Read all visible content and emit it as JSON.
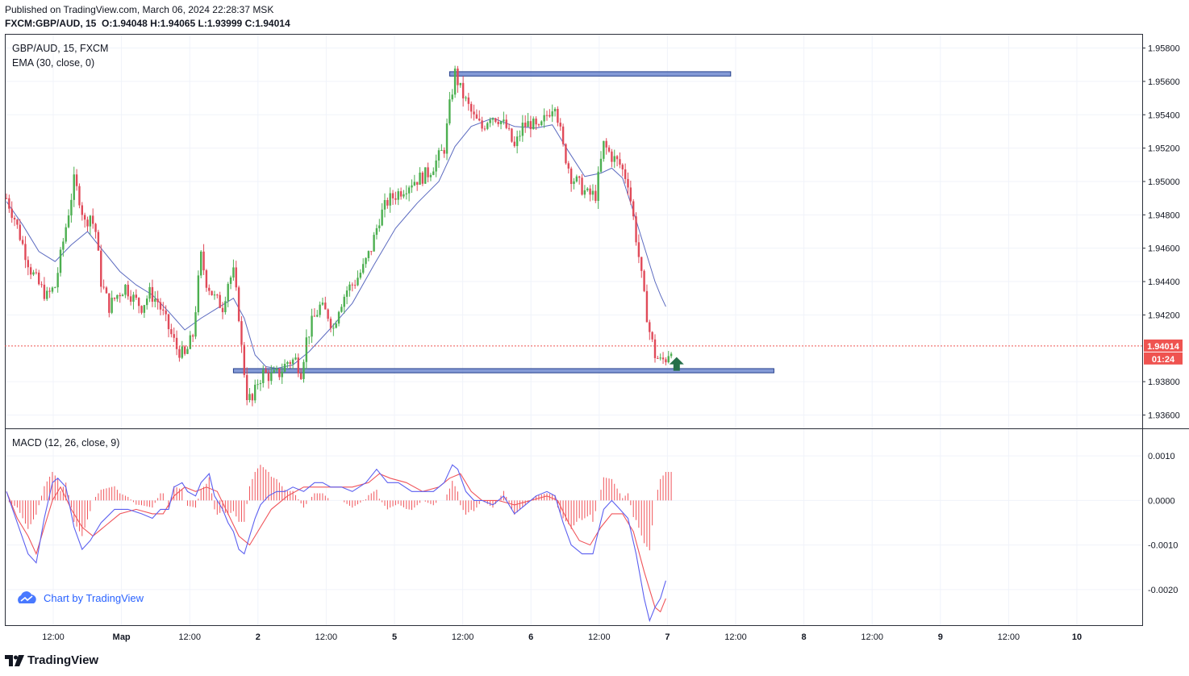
{
  "header": {
    "published": "Published on TradingView.com, March 06, 2024 22:28:37 MSK",
    "symbol": "FXCM:GBP/AUD, 15",
    "o_label": "O:",
    "o": "1.94048",
    "h_label": "H:",
    "h": "1.94065",
    "l_label": "L:",
    "l": "1.93999",
    "c_label": "C:",
    "c": "1.94014"
  },
  "legend": {
    "symbol_line": "GBP/AUD, 15, FXCM",
    "ema_line": "EMA (30, close, 0)",
    "macd_line": "MACD (12, 26, close, 9)"
  },
  "price_badge": {
    "price": "1.94014",
    "countdown": "01:24"
  },
  "watermark": "Chart by TradingView",
  "brand": "TradingView",
  "colors": {
    "up": "#26a69a",
    "down": "#ef5350",
    "candle_up": "#4caf50",
    "candle_down": "#e04a59",
    "ema": "#5c6bc0",
    "macd": "#5b5ff0",
    "signal": "#f0545a",
    "zone_fill": "#5c7ac9",
    "zone_border": "#233e8b",
    "arrow": "#26704a",
    "badge": "#ef5350",
    "brand": "#2962ff"
  },
  "chart_data": {
    "type": "candlestick",
    "title": "GBP/AUD, 15, FXCM",
    "price_axis_ticks": [
      "1.95800",
      "1.95600",
      "1.95400",
      "1.95200",
      "1.95000",
      "1.94800",
      "1.94600",
      "1.94400",
      "1.94200",
      "1.93800",
      "1.93600"
    ],
    "macd_axis_ticks": [
      "0.0010",
      "0.0000",
      "-0.0010",
      "-0.0020"
    ],
    "time_axis_ticks": [
      "12:00",
      "Мар",
      "12:00",
      "2",
      "12:00",
      "5",
      "12:00",
      "6",
      "12:00",
      "7",
      "12:00",
      "8",
      "12:00",
      "9",
      "12:00",
      "10"
    ],
    "price_ylim": [
      1.9352,
      1.9588
    ],
    "macd_ylim": [
      -0.0028,
      0.0016
    ],
    "close_path": [
      [
        0,
        1.949
      ],
      [
        3,
        1.9478
      ],
      [
        6,
        1.9462
      ],
      [
        9,
        1.9447
      ],
      [
        12,
        1.9438
      ],
      [
        15,
        1.9431
      ],
      [
        18,
        1.9437
      ],
      [
        20,
        1.9455
      ],
      [
        23,
        1.9482
      ],
      [
        25,
        1.95
      ],
      [
        27,
        1.949
      ],
      [
        29,
        1.9475
      ],
      [
        31,
        1.948
      ],
      [
        33,
        1.947
      ],
      [
        35,
        1.944
      ],
      [
        38,
        1.9425
      ],
      [
        41,
        1.9432
      ],
      [
        44,
        1.9437
      ],
      [
        47,
        1.943
      ],
      [
        50,
        1.9425
      ],
      [
        53,
        1.9433
      ],
      [
        56,
        1.9428
      ],
      [
        58,
        1.942
      ],
      [
        61,
        1.9408
      ],
      [
        63,
        1.94
      ],
      [
        66,
        1.9395
      ],
      [
        69,
        1.9408
      ],
      [
        71,
        1.944
      ],
      [
        72,
        1.9455
      ],
      [
        74,
        1.944
      ],
      [
        77,
        1.943
      ],
      [
        80,
        1.9425
      ],
      [
        82,
        1.944
      ],
      [
        84,
        1.9445
      ],
      [
        86,
        1.942
      ],
      [
        87,
        1.94
      ],
      [
        89,
        1.9372
      ],
      [
        91,
        1.9368
      ],
      [
        93,
        1.938
      ],
      [
        95,
        1.9385
      ],
      [
        98,
        1.9383
      ],
      [
        101,
        1.9385
      ],
      [
        104,
        1.9392
      ],
      [
        107,
        1.9393
      ],
      [
        109,
        1.9386
      ],
      [
        111,
        1.9405
      ],
      [
        113,
        1.9415
      ],
      [
        116,
        1.9425
      ],
      [
        119,
        1.942
      ],
      [
        121,
        1.9412
      ],
      [
        123,
        1.9425
      ],
      [
        126,
        1.9435
      ],
      [
        129,
        1.944
      ],
      [
        132,
        1.9448
      ],
      [
        135,
        1.946
      ],
      [
        138,
        1.9478
      ],
      [
        141,
        1.9488
      ],
      [
        144,
        1.9492
      ],
      [
        147,
        1.9496
      ],
      [
        150,
        1.95
      ],
      [
        153,
        1.9502
      ],
      [
        156,
        1.9505
      ],
      [
        159,
        1.9512
      ],
      [
        162,
        1.952
      ],
      [
        164,
        1.9545
      ],
      [
        166,
        1.9565
      ],
      [
        168,
        1.9555
      ],
      [
        170,
        1.9548
      ],
      [
        173,
        1.9538
      ],
      [
        176,
        1.9532
      ],
      [
        179,
        1.954
      ],
      [
        182,
        1.9538
      ],
      [
        185,
        1.9532
      ],
      [
        188,
        1.952
      ],
      [
        191,
        1.9533
      ],
      [
        194,
        1.9535
      ],
      [
        197,
        1.953
      ],
      [
        200,
        1.954
      ],
      [
        203,
        1.9548
      ],
      [
        206,
        1.952
      ],
      [
        209,
        1.9503
      ],
      [
        212,
        1.9498
      ],
      [
        215,
        1.9492
      ],
      [
        218,
        1.9492
      ],
      [
        221,
        1.9522
      ],
      [
        224,
        1.9515
      ],
      [
        227,
        1.951
      ],
      [
        230,
        1.95
      ],
      [
        232,
        1.9478
      ],
      [
        234,
        1.9455
      ],
      [
        236,
        1.943
      ],
      [
        238,
        1.941
      ],
      [
        240,
        1.9396
      ],
      [
        242,
        1.9392
      ],
      [
        244,
        1.9394
      ],
      [
        246,
        1.9401
      ]
    ],
    "ema_path": [
      [
        0,
        1.9488
      ],
      [
        6,
        1.9474
      ],
      [
        12,
        1.9458
      ],
      [
        18,
        1.9452
      ],
      [
        24,
        1.9462
      ],
      [
        30,
        1.947
      ],
      [
        36,
        1.9458
      ],
      [
        42,
        1.9446
      ],
      [
        48,
        1.9438
      ],
      [
        54,
        1.9432
      ],
      [
        60,
        1.9422
      ],
      [
        66,
        1.9411
      ],
      [
        72,
        1.9418
      ],
      [
        78,
        1.9424
      ],
      [
        84,
        1.943
      ],
      [
        88,
        1.9418
      ],
      [
        92,
        1.9396
      ],
      [
        96,
        1.9389
      ],
      [
        100,
        1.9388
      ],
      [
        106,
        1.939
      ],
      [
        112,
        1.9398
      ],
      [
        120,
        1.9412
      ],
      [
        128,
        1.9427
      ],
      [
        136,
        1.945
      ],
      [
        144,
        1.9472
      ],
      [
        152,
        1.9487
      ],
      [
        160,
        1.95
      ],
      [
        166,
        1.9521
      ],
      [
        172,
        1.9533
      ],
      [
        180,
        1.9538
      ],
      [
        188,
        1.9533
      ],
      [
        196,
        1.9532
      ],
      [
        202,
        1.9534
      ],
      [
        208,
        1.9518
      ],
      [
        214,
        1.9503
      ],
      [
        220,
        1.9505
      ],
      [
        224,
        1.9508
      ],
      [
        228,
        1.9502
      ],
      [
        232,
        1.9482
      ],
      [
        236,
        1.9461
      ],
      [
        240,
        1.944
      ],
      [
        242,
        1.9432
      ],
      [
        244,
        1.9425
      ]
    ],
    "macd_path": [
      [
        0,
        0.0002
      ],
      [
        4,
        -0.0005
      ],
      [
        8,
        -0.0012
      ],
      [
        11,
        -0.0014
      ],
      [
        14,
        -0.0004
      ],
      [
        17,
        0.0004
      ],
      [
        19,
        0.0005
      ],
      [
        22,
        0.0003
      ],
      [
        25,
        -0.0006
      ],
      [
        28,
        -0.0011
      ],
      [
        31,
        -0.0009
      ],
      [
        35,
        -0.0005
      ],
      [
        40,
        -0.0002
      ],
      [
        45,
        -0.0002
      ],
      [
        50,
        -0.0003
      ],
      [
        54,
        -0.0004
      ],
      [
        57,
        -0.0002
      ],
      [
        60,
        -0.0002
      ],
      [
        62,
        0.0003
      ],
      [
        65,
        0.0004
      ],
      [
        67,
        0.0002
      ],
      [
        70,
        0.0001
      ],
      [
        72,
        0.0004
      ],
      [
        75,
        0.0006
      ],
      [
        77,
        0.0001
      ],
      [
        80,
        -0.0002
      ],
      [
        82,
        -0.0005
      ],
      [
        84,
        -0.0007
      ],
      [
        86,
        -0.0011
      ],
      [
        88,
        -0.0012
      ],
      [
        90,
        -0.0008
      ],
      [
        92,
        -0.0004
      ],
      [
        94,
        -0.0001
      ],
      [
        97,
        0.0001
      ],
      [
        100,
        0.0002
      ],
      [
        103,
        0.0002
      ],
      [
        106,
        0.0003
      ],
      [
        110,
        0.0002
      ],
      [
        114,
        0.0004
      ],
      [
        117,
        0.0004
      ],
      [
        120,
        0.0003
      ],
      [
        124,
        0.0003
      ],
      [
        128,
        0.0002
      ],
      [
        133,
        0.0004
      ],
      [
        137,
        0.0007
      ],
      [
        141,
        0.0004
      ],
      [
        145,
        0.0004
      ],
      [
        150,
        0.0002
      ],
      [
        154,
        0.0002
      ],
      [
        158,
        0.0002
      ],
      [
        162,
        0.0004
      ],
      [
        165,
        0.0008
      ],
      [
        167,
        0.0007
      ],
      [
        170,
        0.0002
      ],
      [
        173,
        0.0
      ],
      [
        176,
        0.0
      ],
      [
        180,
        -0.0001
      ],
      [
        184,
        0.0001
      ],
      [
        188,
        -0.0003
      ],
      [
        192,
        -0.0001
      ],
      [
        196,
        0.0001
      ],
      [
        200,
        0.0002
      ],
      [
        203,
        0.0001
      ],
      [
        206,
        -0.0005
      ],
      [
        209,
        -0.001
      ],
      [
        213,
        -0.0012
      ],
      [
        217,
        -0.0012
      ],
      [
        221,
        -0.0002
      ],
      [
        224,
        0.0
      ],
      [
        227,
        -0.0002
      ],
      [
        230,
        -0.0004
      ],
      [
        233,
        -0.0012
      ],
      [
        236,
        -0.0022
      ],
      [
        238,
        -0.0027
      ],
      [
        240,
        -0.0024
      ],
      [
        242,
        -0.0022
      ],
      [
        244,
        -0.0018
      ]
    ],
    "signal_path": [
      [
        0,
        0.0002
      ],
      [
        4,
        -0.0004
      ],
      [
        8,
        -0.0008
      ],
      [
        11,
        -0.0012
      ],
      [
        14,
        -0.0006
      ],
      [
        17,
        0.0
      ],
      [
        20,
        0.0003
      ],
      [
        24,
        -0.0002
      ],
      [
        28,
        -0.0006
      ],
      [
        32,
        -0.0008
      ],
      [
        36,
        -0.0006
      ],
      [
        42,
        -0.0003
      ],
      [
        48,
        -0.0002
      ],
      [
        54,
        -0.0003
      ],
      [
        58,
        -0.0003
      ],
      [
        62,
        0.0001
      ],
      [
        66,
        0.0003
      ],
      [
        70,
        0.0002
      ],
      [
        74,
        0.0003
      ],
      [
        78,
        0.0002
      ],
      [
        82,
        -0.0003
      ],
      [
        86,
        -0.0008
      ],
      [
        90,
        -0.001
      ],
      [
        94,
        -0.0006
      ],
      [
        98,
        -0.0002
      ],
      [
        104,
        0.0001
      ],
      [
        110,
        0.0003
      ],
      [
        116,
        0.0003
      ],
      [
        122,
        0.0003
      ],
      [
        128,
        0.0003
      ],
      [
        134,
        0.0004
      ],
      [
        138,
        0.0006
      ],
      [
        142,
        0.0005
      ],
      [
        148,
        0.0004
      ],
      [
        154,
        0.0002
      ],
      [
        160,
        0.0003
      ],
      [
        164,
        0.0005
      ],
      [
        168,
        0.0006
      ],
      [
        172,
        0.0002
      ],
      [
        176,
        0.0
      ],
      [
        182,
        0.0
      ],
      [
        188,
        -0.0001
      ],
      [
        194,
        0.0
      ],
      [
        200,
        0.0001
      ],
      [
        204,
        0.0
      ],
      [
        208,
        -0.0005
      ],
      [
        212,
        -0.0009
      ],
      [
        216,
        -0.001
      ],
      [
        220,
        -0.0006
      ],
      [
        224,
        -0.0003
      ],
      [
        228,
        -0.0003
      ],
      [
        232,
        -0.0007
      ],
      [
        236,
        -0.0016
      ],
      [
        240,
        -0.0024
      ],
      [
        242,
        -0.0025
      ],
      [
        244,
        -0.0022
      ]
    ],
    "zones": [
      {
        "from": 1.95632,
        "to": 1.95658,
        "start": 164,
        "end": 268
      },
      {
        "from": 1.93853,
        "to": 1.93878,
        "start": 84,
        "end": 284
      }
    ],
    "signal_arrow": {
      "index": 248,
      "price": 1.93865,
      "direction": "up"
    },
    "last_price": 1.94014
  }
}
